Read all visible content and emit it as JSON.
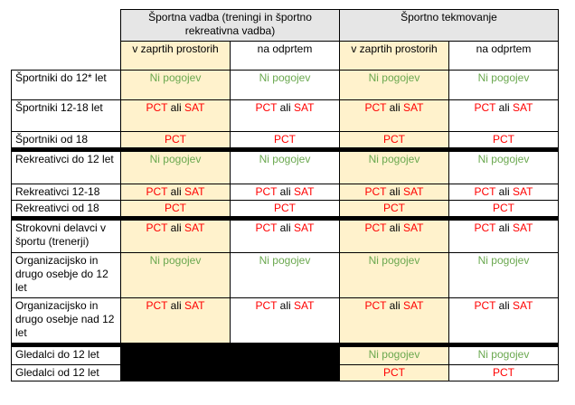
{
  "header": {
    "group1": "Športna vadba (treningi in športno rekreativna vadba)",
    "group2": "Športno tekmovanje",
    "sub": [
      "v zaprtih prostorih",
      "na odprtem",
      "v zaprtih prostorih",
      "na odprtem"
    ]
  },
  "terms": {
    "none": "Ni pogojev",
    "pct": "PCT",
    "or": "ali",
    "sat": "SAT"
  },
  "rows": [
    {
      "label": "Športniki do 12* let"
    },
    {
      "label": "Športniki 12-18 let"
    },
    {
      "label": "Športniki od 18"
    },
    {
      "label": "Rekreativci do 12 let"
    },
    {
      "label": "Rekreativci 12-18"
    },
    {
      "label": "Rekreativci od 18"
    },
    {
      "label": "Strokovni delavci v športu (trenerji)"
    },
    {
      "label": "Organizacijsko in drugo osebje do 12 let"
    },
    {
      "label": "Organizacijsko in drugo osebje nad 12 let"
    },
    {
      "label": "Gledalci do 12 let"
    },
    {
      "label": "Gledalci od 12 let"
    }
  ],
  "colors": {
    "header_bg": "#e6e6e6",
    "indoor_bg": "#fff2cc",
    "green_text": "#6aa84f",
    "red_text": "#ff0000"
  }
}
